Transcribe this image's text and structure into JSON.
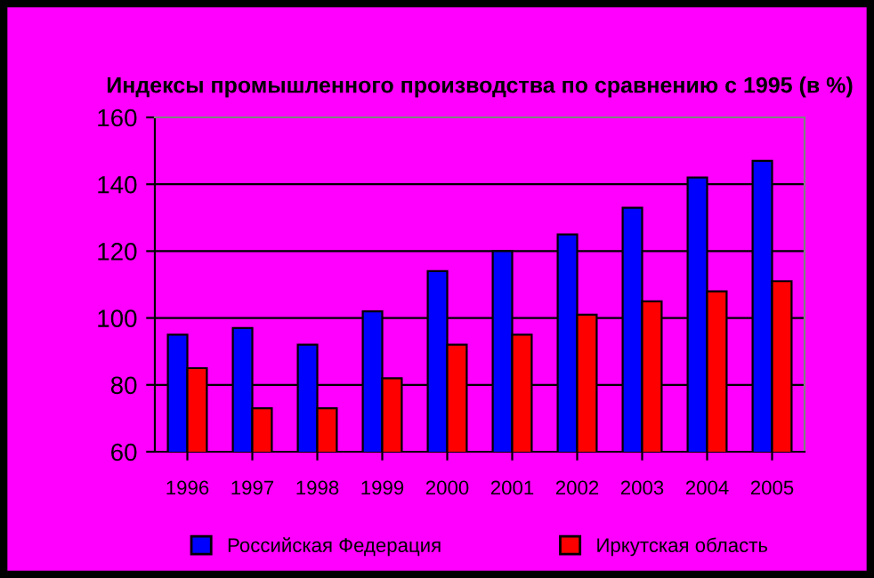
{
  "chart_data": {
    "type": "bar",
    "title": "Индексы промышленного производства по сравнению с 1995 (в %)",
    "categories": [
      "1996",
      "1997",
      "1998",
      "1999",
      "2000",
      "2001",
      "2002",
      "2003",
      "2004",
      "2005"
    ],
    "series": [
      {
        "name": "Российская Федерация",
        "color": "#0000ff",
        "values": [
          95,
          97,
          92,
          102,
          114,
          120,
          125,
          133,
          142,
          147
        ]
      },
      {
        "name": "Иркутская область",
        "color": "#ff0000",
        "values": [
          85,
          73,
          73,
          82,
          92,
          95,
          101,
          105,
          108,
          111
        ]
      }
    ],
    "ylim": [
      60,
      160
    ],
    "yticks": [
      60,
      80,
      100,
      120,
      140,
      160
    ],
    "grid": "y",
    "legend": "bottom"
  }
}
